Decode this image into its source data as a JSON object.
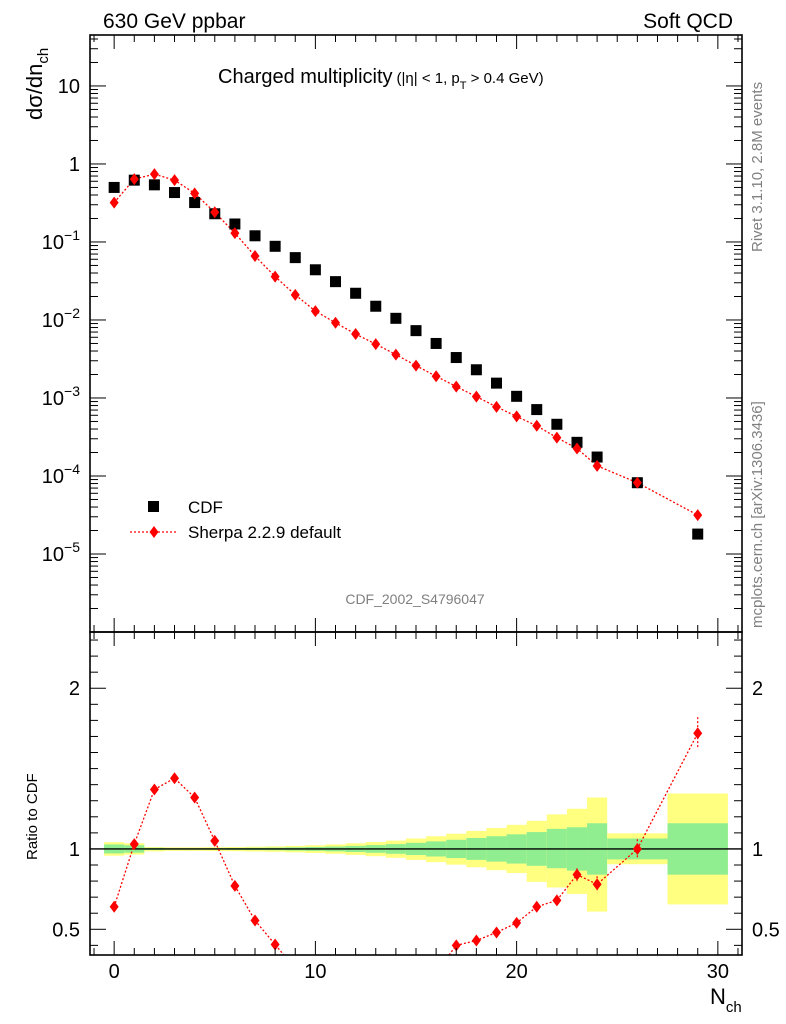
{
  "header": {
    "left": "630 GeV ppbar",
    "right": "Soft QCD"
  },
  "side_labels": {
    "rivet": "Rivet 3.1.10,  2.8M events",
    "mcplots": "mcplots.cern.ch [arXiv:1306.3436]"
  },
  "chart_data": [
    {
      "type": "scatter",
      "panel": "main",
      "title_main": "Charged multiplicity",
      "title_sub": "(|η| < 1, p",
      "title_sub_index": "T",
      "title_sub_end": " > 0.4 GeV)",
      "ylabel_main": "dσ/dn",
      "ylabel_sub": "ch",
      "analysis_tag": "CDF_2002_S4796047",
      "yscale": "log",
      "xlim": [
        -1.2,
        31.2
      ],
      "ylim": [
        1e-06,
        45
      ],
      "yticklabels": [
        {
          "value": 10,
          "label": "10"
        },
        {
          "value": 1,
          "label": "1"
        },
        {
          "value": 0.1,
          "base": "10",
          "exp": "−1"
        },
        {
          "value": 0.01,
          "base": "10",
          "exp": "−2"
        },
        {
          "value": 0.001,
          "base": "10",
          "exp": "−3"
        },
        {
          "value": 0.0001,
          "base": "10",
          "exp": "−4"
        },
        {
          "value": 1e-05,
          "base": "10",
          "exp": "−5"
        }
      ],
      "legend": [
        {
          "name": "CDF",
          "marker": "square",
          "color": "#000000"
        },
        {
          "name": "Sherpa 2.2.9 default",
          "marker": "diamond",
          "color": "#ff0000",
          "linestyle": "dotted"
        }
      ],
      "series": [
        {
          "name": "CDF",
          "x": [
            0,
            1,
            2,
            3,
            4,
            5,
            6,
            7,
            8,
            9,
            10,
            11,
            12,
            13,
            14,
            15,
            16,
            17,
            18,
            19,
            20,
            21,
            22,
            23,
            24,
            26,
            29
          ],
          "y": [
            0.5,
            0.62,
            0.54,
            0.43,
            0.32,
            0.23,
            0.17,
            0.12,
            0.088,
            0.063,
            0.044,
            0.031,
            0.022,
            0.015,
            0.0105,
            0.0073,
            0.005,
            0.0033,
            0.0023,
            0.00155,
            0.00105,
            0.00071,
            0.00046,
            0.00027,
            0.000175,
            8.2e-05,
            1.8e-05
          ]
        },
        {
          "name": "Sherpa 2.2.9 default",
          "x": [
            0,
            1,
            2,
            3,
            4,
            5,
            6,
            7,
            8,
            9,
            10,
            11,
            12,
            13,
            14,
            15,
            16,
            17,
            18,
            19,
            20,
            21,
            22,
            23,
            24,
            26,
            29
          ],
          "y": [
            0.32,
            0.64,
            0.74,
            0.62,
            0.42,
            0.24,
            0.13,
            0.066,
            0.036,
            0.021,
            0.013,
            0.0092,
            0.0066,
            0.0049,
            0.0036,
            0.0026,
            0.0019,
            0.0014,
            0.00104,
            0.00077,
            0.00058,
            0.00044,
            0.00031,
            0.000225,
            0.000135,
            8.2e-05,
            3.15e-05
          ]
        }
      ]
    },
    {
      "type": "scatter",
      "panel": "ratio",
      "ylabel": "Ratio to CDF",
      "xlabel_main": "N",
      "xlabel_sub": "ch",
      "xlim": [
        -1.2,
        31.2
      ],
      "ylim": [
        0.34,
        2.35
      ],
      "yticks": [
        0.5,
        1,
        2
      ],
      "yticklabels": [
        "0.5",
        "1",
        "2"
      ],
      "xticks": [
        0,
        10,
        20,
        30
      ],
      "xticklabels": [
        "0",
        "10",
        "20",
        "30"
      ],
      "reference_line": 1,
      "uncertainty_bands": {
        "colors": {
          "outer": "#ffff80",
          "inner": "#90ee90"
        },
        "bins": [
          {
            "x": [
              -0.5,
              0.5
            ],
            "outer": [
              0.958,
              1.042
            ],
            "inner": [
              0.972,
              1.028
            ]
          },
          {
            "x": [
              0.5,
              1.5
            ],
            "outer": [
              0.965,
              1.035
            ],
            "inner": [
              0.977,
              1.023
            ]
          },
          {
            "x": [
              1.5,
              2.5
            ],
            "outer": [
              0.985,
              1.012
            ],
            "inner": [
              0.993,
              1.007
            ]
          },
          {
            "x": [
              2.5,
              3.5
            ],
            "outer": [
              0.988,
              1.01
            ],
            "inner": [
              0.995,
              1.005
            ]
          },
          {
            "x": [
              3.5,
              4.5
            ],
            "outer": [
              0.988,
              1.01
            ],
            "inner": [
              0.995,
              1.005
            ]
          },
          {
            "x": [
              4.5,
              5.5
            ],
            "outer": [
              0.987,
              1.011
            ],
            "inner": [
              0.995,
              1.005
            ]
          },
          {
            "x": [
              5.5,
              6.5
            ],
            "outer": [
              0.986,
              1.012
            ],
            "inner": [
              0.994,
              1.006
            ]
          },
          {
            "x": [
              6.5,
              7.5
            ],
            "outer": [
              0.984,
              1.014
            ],
            "inner": [
              0.993,
              1.007
            ]
          },
          {
            "x": [
              7.5,
              8.5
            ],
            "outer": [
              0.982,
              1.016
            ],
            "inner": [
              0.992,
              1.008
            ]
          },
          {
            "x": [
              8.5,
              9.5
            ],
            "outer": [
              0.979,
              1.019
            ],
            "inner": [
              0.99,
              1.01
            ]
          },
          {
            "x": [
              9.5,
              10.5
            ],
            "outer": [
              0.975,
              1.023
            ],
            "inner": [
              0.988,
              1.012
            ]
          },
          {
            "x": [
              10.5,
              11.5
            ],
            "outer": [
              0.97,
              1.028
            ],
            "inner": [
              0.985,
              1.015
            ]
          },
          {
            "x": [
              11.5,
              12.5
            ],
            "outer": [
              0.963,
              1.035
            ],
            "inner": [
              0.981,
              1.019
            ]
          },
          {
            "x": [
              12.5,
              13.5
            ],
            "outer": [
              0.955,
              1.043
            ],
            "inner": [
              0.976,
              1.024
            ]
          },
          {
            "x": [
              13.5,
              14.5
            ],
            "outer": [
              0.945,
              1.052
            ],
            "inner": [
              0.97,
              1.03
            ]
          },
          {
            "x": [
              14.5,
              15.5
            ],
            "outer": [
              0.932,
              1.065
            ],
            "inner": [
              0.962,
              1.038
            ]
          },
          {
            "x": [
              15.5,
              16.5
            ],
            "outer": [
              0.918,
              1.079
            ],
            "inner": [
              0.953,
              1.047
            ]
          },
          {
            "x": [
              16.5,
              17.5
            ],
            "outer": [
              0.902,
              1.095
            ],
            "inner": [
              0.943,
              1.057
            ]
          },
          {
            "x": [
              17.5,
              18.5
            ],
            "outer": [
              0.886,
              1.112
            ],
            "inner": [
              0.932,
              1.068
            ]
          },
          {
            "x": [
              18.5,
              19.5
            ],
            "outer": [
              0.868,
              1.13
            ],
            "inner": [
              0.921,
              1.079
            ]
          },
          {
            "x": [
              19.5,
              20.5
            ],
            "outer": [
              0.85,
              1.15
            ],
            "inner": [
              0.909,
              1.091
            ]
          },
          {
            "x": [
              20.5,
              21.5
            ],
            "outer": [
              0.795,
              1.175
            ],
            "inner": [
              0.895,
              1.105
            ]
          },
          {
            "x": [
              21.5,
              22.5
            ],
            "outer": [
              0.76,
              1.215
            ],
            "inner": [
              0.88,
              1.125
            ]
          },
          {
            "x": [
              22.5,
              23.5
            ],
            "outer": [
              0.72,
              1.25
            ],
            "inner": [
              0.865,
              1.135
            ]
          },
          {
            "x": [
              23.5,
              24.5
            ],
            "outer": [
              0.61,
              1.32
            ],
            "inner": [
              0.84,
              1.16
            ]
          },
          {
            "x": [
              24.5,
              27.5
            ],
            "outer": [
              0.905,
              1.097
            ],
            "inner": [
              0.935,
              1.065
            ]
          },
          {
            "x": [
              27.5,
              30.5
            ],
            "outer": [
              0.655,
              1.345
            ],
            "inner": [
              0.84,
              1.16
            ]
          }
        ]
      },
      "series": [
        {
          "name": "Sherpa 2.2.9 default",
          "x": [
            0,
            1,
            2,
            3,
            4,
            5,
            6,
            7,
            8,
            17,
            18,
            19,
            20,
            21,
            22,
            23,
            24,
            26,
            29
          ],
          "y": [
            0.64,
            1.03,
            1.37,
            1.44,
            1.32,
            1.05,
            0.77,
            0.555,
            0.405,
            0.4,
            0.43,
            0.48,
            0.54,
            0.64,
            0.68,
            0.84,
            0.78,
            1.0,
            1.72
          ],
          "yerr": [
            0.01,
            0.01,
            0.01,
            0.01,
            0.01,
            0.01,
            0.01,
            0.01,
            0.01,
            0.01,
            0.01,
            0.015,
            0.02,
            0.025,
            0.03,
            0.04,
            0.05,
            0.06,
            0.1
          ]
        }
      ]
    }
  ]
}
